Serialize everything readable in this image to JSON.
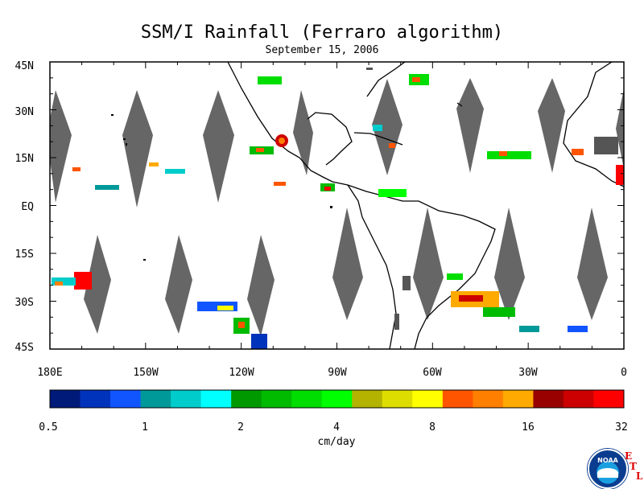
{
  "title": "SSM/I Rainfall (Ferraro algorithm)",
  "date": "September 15, 2006",
  "map": {
    "lon_range": [
      180,
      360
    ],
    "lat_range": [
      -45,
      45
    ],
    "y_ticks": [
      "45N",
      "30N",
      "15N",
      "EQ",
      "15S",
      "30S",
      "45S"
    ],
    "x_ticks": [
      "180E",
      "150W",
      "120W",
      "90W",
      "60W",
      "30W",
      "0"
    ]
  },
  "colorbar": {
    "colors": [
      "#001a7a",
      "#0033bb",
      "#1155ff",
      "#009999",
      "#00cccc",
      "#00ffff",
      "#009900",
      "#00bb00",
      "#00dd00",
      "#00ff00",
      "#b3b300",
      "#dddd00",
      "#ffff00",
      "#ff5500",
      "#ff7f00",
      "#ffaa00",
      "#990000",
      "#cc0000",
      "#ff0000"
    ],
    "ticks": [
      "0.5",
      "1",
      "2",
      "4",
      "8",
      "16",
      "32"
    ],
    "unit": "cm/day"
  },
  "logo": {
    "text": "NOAA",
    "etl": [
      "E",
      "T",
      "L"
    ]
  }
}
